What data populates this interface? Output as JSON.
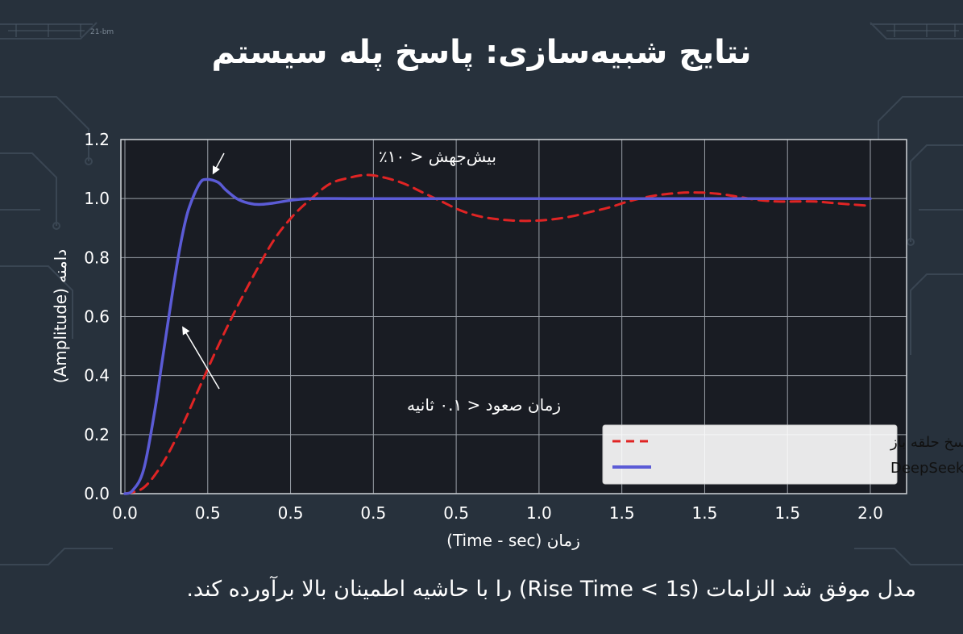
{
  "slide": {
    "title": "نتایج شبیه‌سازی: پاسخ پله سیستم",
    "caption": "مدل موفق شد الزامات (Rise Time < 1s) را با حاشیه اطمینان بالا برآورده کند.",
    "corner_mark": "21-bm"
  },
  "chart_data": {
    "type": "line",
    "xlabel": "زمان (Time - sec)",
    "ylabel": "دامنه (Amplitude)",
    "ylim": [
      0,
      1.2
    ],
    "x_tick_labels": [
      "0.0",
      "0.5",
      "0.5",
      "0.5",
      "0.5",
      "1.0",
      "1.5",
      "1.5",
      "1.5",
      "2.0"
    ],
    "y_tick_labels": [
      "0.0",
      "0.2",
      "0.4",
      "0.6",
      "0.8",
      "1.0",
      "1.2"
    ],
    "grid": true,
    "legend_position": "bottom-right",
    "series": [
      {
        "name": "پاسخ حلقه باز",
        "color": "#e02424",
        "style": "dashed",
        "x": [
          0,
          0.05,
          0.1,
          0.15,
          0.2,
          0.25,
          0.3,
          0.35,
          0.4,
          0.45,
          0.5,
          0.55,
          0.6,
          0.65,
          0.7,
          0.75,
          0.8,
          0.85,
          0.9,
          0.95,
          1.0,
          1.05,
          1.1,
          1.15,
          1.2,
          1.25,
          1.3,
          1.35,
          1.4,
          1.45,
          1.5,
          1.55,
          1.6,
          1.65,
          1.7,
          1.75,
          1.8,
          1.85,
          1.9,
          1.95,
          2.0
        ],
        "values": [
          0,
          0.02,
          0.1,
          0.22,
          0.36,
          0.5,
          0.63,
          0.75,
          0.86,
          0.94,
          1.0,
          1.05,
          1.07,
          1.08,
          1.07,
          1.05,
          1.02,
          0.99,
          0.96,
          0.94,
          0.93,
          0.925,
          0.925,
          0.93,
          0.94,
          0.955,
          0.97,
          0.99,
          1.005,
          1.015,
          1.02,
          1.02,
          1.015,
          1.005,
          0.995,
          0.99,
          0.99,
          0.99,
          0.985,
          0.98,
          0.975
        ]
      },
      {
        "name": "پاسخ حلقه بسته - DeepSeek",
        "color": "#5b5bd6",
        "style": "solid",
        "x": [
          0,
          0.02,
          0.05,
          0.08,
          0.1,
          0.13,
          0.15,
          0.17,
          0.2,
          0.22,
          0.25,
          0.27,
          0.3,
          0.33,
          0.36,
          0.4,
          0.45,
          0.5,
          0.6,
          0.7,
          0.8,
          1.0,
          1.2,
          1.5,
          1.8,
          2.0
        ],
        "values": [
          0,
          0.01,
          0.08,
          0.28,
          0.45,
          0.7,
          0.85,
          0.96,
          1.05,
          1.065,
          1.055,
          1.03,
          1.0,
          0.985,
          0.98,
          0.985,
          0.995,
          1.0,
          1.0,
          1.0,
          1.0,
          1.0,
          1.0,
          1.0,
          1.0,
          1.0
        ]
      }
    ],
    "annotations": [
      {
        "text": "بیش‌جهش < ۱۰٪",
        "x": 0.22,
        "y": 1.07
      },
      {
        "text": "زمان صعود < ۰.۱ ثانیه",
        "x": 0.13,
        "y": 0.59
      }
    ]
  }
}
